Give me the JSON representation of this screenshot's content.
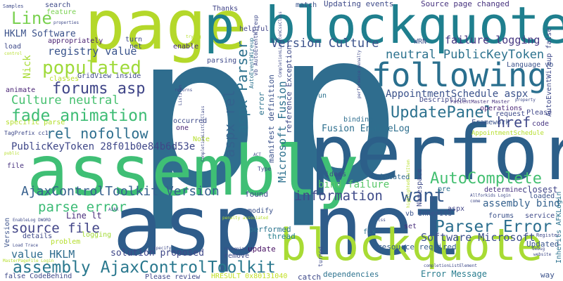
{
  "words": [
    {
      "id": "p1",
      "text": "p",
      "color": "#2f6d8e"
    },
    {
      "id": "p2",
      "text": "p",
      "color": "#2f6d8e"
    },
    {
      "id": "perform",
      "text": "perform",
      "color": "#2c5f89"
    },
    {
      "id": "asp_net",
      "text": "asp net",
      "color": "#2e5c8a"
    },
    {
      "id": "assembly",
      "text": "assembly",
      "color": "#3fbf75"
    },
    {
      "id": "page",
      "text": "page",
      "color": "#b4d82a"
    },
    {
      "id": "p_blockquote",
      "text": "p blockquote",
      "color": "#1f7f8e"
    },
    {
      "id": "blockquote_p",
      "text": "blockquote p",
      "color": "#a8db34"
    },
    {
      "id": "following",
      "text": "following",
      "color": "#2a6f8e"
    },
    {
      "id": "assembly_act",
      "text": "assembly AjaxControlToolkit",
      "color": "#2a788e"
    },
    {
      "id": "parser_error",
      "text": "Parser Error",
      "color": "#2b6e8e"
    },
    {
      "id": "autocomplete",
      "text": "AutoComplete",
      "color": "#43bf71"
    },
    {
      "id": "updatepanel",
      "text": "UpdatePanel",
      "color": "#2c718e"
    },
    {
      "id": "fade_animation",
      "text": "fade animation",
      "color": "#3dbc74"
    },
    {
      "id": "populated",
      "text": "populated",
      "color": "#9fda3a"
    },
    {
      "id": "forums_asp",
      "text": "forums asp",
      "color": "#404688"
    },
    {
      "id": "culture_neutral",
      "text": "Culture neutral",
      "color": "#46c06f"
    },
    {
      "id": "rel_nofollow",
      "text": "rel nofollow",
      "color": "#2e6e8e"
    },
    {
      "id": "act_version",
      "text": "AjaxControlToolkit Version",
      "color": "#355f8d"
    },
    {
      "id": "information",
      "text": "information",
      "color": "#3e4a89"
    },
    {
      "id": "want",
      "text": "want",
      "color": "#375a8c"
    },
    {
      "id": "source_file",
      "text": "source file",
      "color": "#414487"
    },
    {
      "id": "parse_error",
      "text": "parse error",
      "color": "#3bbb75"
    },
    {
      "id": "neutral_pkt",
      "text": "neutral PublicKeyToken",
      "color": "#2c728e"
    },
    {
      "id": "version_culture",
      "text": "Version Culture",
      "color": "#3b528b"
    },
    {
      "id": "line",
      "text": "Line",
      "color": "#7ad151"
    },
    {
      "id": "aspx_parser",
      "text": "aspx Parser",
      "color": "#2c718e"
    },
    {
      "id": "aspx_rel",
      "text": "aspx rel",
      "color": "#33638d"
    },
    {
      "id": "href",
      "text": "href",
      "color": "#3f4889"
    },
    {
      "id": "failure_logging",
      "text": "failure logging",
      "color": "#453781"
    },
    {
      "id": "pkt",
      "text": "PublicKeyToken 28f01b0e84b6d53e",
      "color": "#3f4788"
    },
    {
      "id": "value_hklm",
      "text": "value HKLM",
      "color": "#2f6c8e"
    },
    {
      "id": "software_microsoft",
      "text": "Software Microsoft",
      "color": "#3c4f8a"
    },
    {
      "id": "appointment",
      "text": "AppointmentSchedule aspx",
      "color": "#3b528b"
    },
    {
      "id": "microsoft_fusion",
      "text": "Microsoft Fusion",
      "color": "#2d708e"
    },
    {
      "id": "registry_value",
      "text": "registry value",
      "color": "#3a548c"
    },
    {
      "id": "hklm_software",
      "text": "HKLM Software",
      "color": "#3b528b"
    },
    {
      "id": "error_message",
      "text": "Error Message",
      "color": "#287c8e"
    },
    {
      "id": "bind_failure",
      "text": "bind failure",
      "color": "#56c667"
    },
    {
      "id": "assembly_bind",
      "text": "assembly bind",
      "color": "#34618d"
    },
    {
      "id": "fusion_enablelog",
      "text": "Fusion EnableLog",
      "color": "#2e6f8e"
    },
    {
      "id": "solution_proposed",
      "text": "solution proposed",
      "color": "#3f4788"
    },
    {
      "id": "resource_required",
      "text": "resource required",
      "color": "#365d8d"
    },
    {
      "id": "updating_events",
      "text": "Updating events",
      "color": "#3e4a89"
    },
    {
      "id": "source_page_changed",
      "text": "Source page changed",
      "color": "#46327e"
    },
    {
      "id": "closest",
      "text": "closest",
      "color": "#414487"
    },
    {
      "id": "updated",
      "text": "Updated",
      "color": "#39558c"
    },
    {
      "id": "found",
      "text": "found",
      "color": "#3e4c8a"
    },
    {
      "id": "line_lt",
      "text": "Line lt",
      "color": "#472c7a"
    },
    {
      "id": "thanks",
      "text": "Thanks",
      "color": "#414487"
    },
    {
      "id": "helpful",
      "text": "helpful",
      "color": "#414487"
    },
    {
      "id": "search",
      "text": "search",
      "color": "#3e4a89"
    },
    {
      "id": "feature",
      "text": "feature",
      "color": "#7ad151"
    },
    {
      "id": "note",
      "text": "Note",
      "color": "#b5de2b"
    },
    {
      "id": "thread",
      "text": "thread",
      "color": "#27808e"
    },
    {
      "id": "performed",
      "text": "performed",
      "color": "#2b748e"
    },
    {
      "id": "update",
      "text": "update",
      "color": "#471063"
    },
    {
      "id": "gridview_inside",
      "text": "GridView inside",
      "color": "#3e4989"
    },
    {
      "id": "classes",
      "text": "classes",
      "color": "#b8de29"
    },
    {
      "id": "animate",
      "text": "animate",
      "color": "#482374"
    },
    {
      "id": "specific_parse",
      "text": "specific parse",
      "color": "#b5de2b"
    },
    {
      "id": "appropriately",
      "text": "appropriately",
      "color": "#481f70"
    },
    {
      "id": "operations",
      "text": "operations",
      "color": "#482475"
    },
    {
      "id": "framework",
      "text": "Framework",
      "color": "#3b528b"
    },
    {
      "id": "code",
      "text": "code",
      "color": "#463480"
    },
    {
      "id": "please",
      "text": "Please",
      "color": "#3f4788"
    },
    {
      "id": "request",
      "text": "request",
      "color": "#3e4989"
    },
    {
      "id": "description",
      "text": "Description",
      "color": "#3f4889"
    },
    {
      "id": "language_vb",
      "text": "Language vb",
      "color": "#3b528b"
    },
    {
      "id": "ideas",
      "text": "ideas",
      "color": "#3e4a89"
    },
    {
      "id": "located",
      "text": "located",
      "color": "#31688e"
    },
    {
      "id": "pre",
      "text": "pre",
      "color": "#2c728e"
    },
    {
      "id": "determine",
      "text": "determine",
      "color": "#46327e"
    },
    {
      "id": "loaded",
      "text": "loaded",
      "color": "#3b528b"
    },
    {
      "id": "vb_inherits",
      "text": "vb Inherits",
      "color": "#3b528b"
    },
    {
      "id": "aspx",
      "text": "aspx",
      "color": "#414487"
    },
    {
      "id": "forums",
      "text": "forums",
      "color": "#3b528b"
    },
    {
      "id": "service",
      "text": "service",
      "color": "#3e4a89"
    },
    {
      "id": "set",
      "text": "set",
      "color": "#472d7b"
    },
    {
      "id": "modify",
      "text": "modify",
      "color": "#3b528b"
    },
    {
      "id": "remove",
      "text": "remove",
      "color": "#3e4a89"
    },
    {
      "id": "fix",
      "text": "fix",
      "color": "#2c728e"
    },
    {
      "id": "catch",
      "text": "catch",
      "color": "#3e4989"
    },
    {
      "id": "dependencies",
      "text": "dependencies",
      "color": "#2c728e"
    },
    {
      "id": "way",
      "text": "way",
      "color": "#3b528b"
    },
    {
      "id": "please_review",
      "text": "Please review",
      "color": "#3f4889"
    },
    {
      "id": "false_codebehind",
      "text": "false CodeBehind",
      "color": "#3e4989"
    },
    {
      "id": "hresult",
      "text": "HRESULT 0x80131040",
      "color": "#c2df23"
    },
    {
      "id": "details",
      "text": "details",
      "color": "#3e4989"
    },
    {
      "id": "problem",
      "text": "problem",
      "color": "#b5de2b"
    },
    {
      "id": "logging",
      "text": "logging",
      "color": "#a2da37"
    },
    {
      "id": "one",
      "text": "one",
      "color": "#482374"
    },
    {
      "id": "occurred",
      "text": "occurred",
      "color": "#3e4a89"
    },
    {
      "id": "file",
      "text": "file",
      "color": "#46307e"
    },
    {
      "id": "binding",
      "text": "binding",
      "color": "#2e6e8e"
    },
    {
      "id": "run",
      "text": "run",
      "color": "#2c728e"
    },
    {
      "id": "match",
      "text": "match",
      "color": "#3b528b"
    },
    {
      "id": "parsing",
      "text": "parsing",
      "color": "#3e4989"
    },
    {
      "id": "enable",
      "text": "enable",
      "color": "#472d7b"
    },
    {
      "id": "turn",
      "text": "turn",
      "color": "#3e4a89"
    },
    {
      "id": "net",
      "text": "net",
      "color": "#3e4a89"
    },
    {
      "id": "load",
      "text": "load",
      "color": "#3e4989"
    },
    {
      "id": "wrn",
      "text": "WRN",
      "color": "#3b528b"
    },
    {
      "id": "error",
      "text": "error",
      "color": "#2c728e"
    },
    {
      "id": "manifest_definition",
      "text": "manifest definition",
      "color": "#3b528b"
    },
    {
      "id": "reference_exception",
      "text": "reference Exception",
      "color": "#3e4a89"
    },
    {
      "id": "nick",
      "text": "Nick",
      "color": "#a8db34"
    },
    {
      "id": "version",
      "text": "Version",
      "color": "#3b528b"
    },
    {
      "id": "namespace",
      "text": "Namespace",
      "color": "#3e4989"
    },
    {
      "id": "autoeventwireup_false",
      "text": "AutoEventWireup false",
      "color": "#3e4989"
    },
    {
      "id": "inherits_afklogin",
      "text": "Inherits AFKLogin",
      "color": "#2c728e"
    },
    {
      "id": "appointmentschedule",
      "text": "AppointmentSchedule",
      "color": "#b5de2b"
    },
    {
      "id": "patientmaster",
      "text": "PatientMaster Master",
      "color": "#46327e"
    },
    {
      "id": "type",
      "text": "Type",
      "color": "#3e4989"
    },
    {
      "id": "samples",
      "text": "Samples",
      "color": "#3e4a89"
    },
    {
      "id": "properties",
      "text": "properties",
      "color": "#3e4989"
    },
    {
      "id": "tagprefix",
      "text": "TagPrefix cc1",
      "color": "#3e4989"
    },
    {
      "id": "trying",
      "text": "trying",
      "color": "#b5de2b"
    },
    {
      "id": "returns",
      "text": "returns",
      "color": "#3e4989"
    },
    {
      "id": "control",
      "text": "control",
      "color": "#b5de2b"
    },
    {
      "id": "public",
      "text": "public",
      "color": "#b5de2b"
    },
    {
      "id": "specify",
      "text": "specify",
      "color": "#3e4989"
    },
    {
      "id": "recognize",
      "text": "recognize",
      "color": "#3e4989"
    },
    {
      "id": "css",
      "text": "css",
      "color": "#3e4989"
    },
    {
      "id": "enablelog_dword",
      "text": "EnableLog DWORD",
      "color": "#3e4989"
    },
    {
      "id": "load_trace",
      "text": "Load Trace",
      "color": "#3e4989"
    },
    {
      "id": "masterpage",
      "text": "MasterPageFile Login",
      "color": "#b5de2b"
    },
    {
      "id": "completionlist",
      "text": "CompletionListCssClass",
      "color": "#3e4989"
    },
    {
      "id": "perf_penalty",
      "text": "performance penalty",
      "color": "#3e4989"
    },
    {
      "id": "register",
      "text": "Register",
      "color": "#3e4989"
    },
    {
      "id": "property",
      "text": "property",
      "color": "#3e4989"
    },
    {
      "id": "penalty_assoc",
      "text": "penalty associated",
      "color": "#b5de2b"
    },
    {
      "id": "listitem",
      "text": "ListItem",
      "color": "#3e4989"
    },
    {
      "id": "allforkids",
      "text": "Allforkids Login",
      "color": "#3e4989"
    },
    {
      "id": "completion_elem",
      "text": "completionListElement",
      "color": "#3e4989"
    },
    {
      "id": "highlighted",
      "text": "highlightedListItem",
      "color": "#b5de2b"
    },
    {
      "id": "autoeventwireup",
      "text": "AutoEventWireup",
      "color": "#2c728e"
    },
    {
      "id": "turned",
      "text": "turned",
      "color": "#3e4989"
    },
    {
      "id": "come",
      "text": "come",
      "color": "#3e4989"
    },
    {
      "id": "debug",
      "text": "debug",
      "color": "#3e4989"
    },
    {
      "id": "ajax",
      "text": "AJAX",
      "color": "#3e4989"
    },
    {
      "id": "completion_item",
      "text": "CompletionListItemCssClass",
      "color": "#3e4989"
    },
    {
      "id": "vb_autoeventwireup",
      "text": "vb AutoEventWireup",
      "color": "#3e4989"
    },
    {
      "id": "act",
      "text": "ACT",
      "color": "#3e4989"
    },
    {
      "id": "website",
      "text": "website",
      "color": "#3e4989"
    }
  ]
}
